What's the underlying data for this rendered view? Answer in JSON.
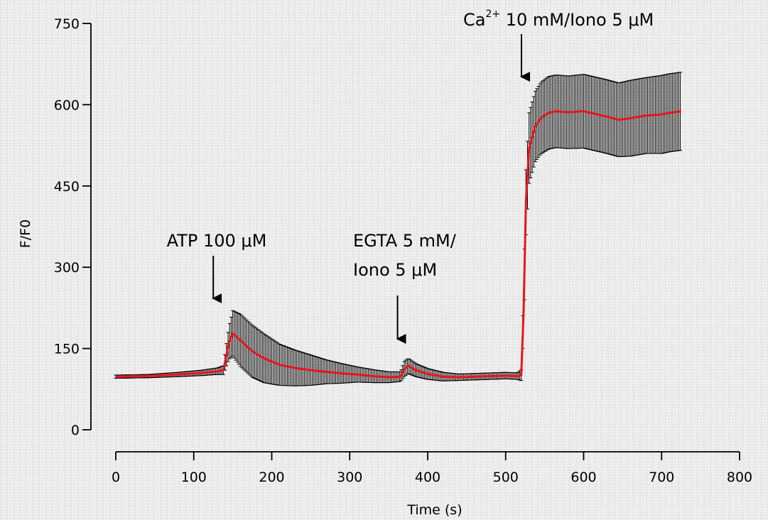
{
  "chart_data": {
    "type": "line",
    "xlabel": "Time (s)",
    "ylabel": "F/F0",
    "xlim": [
      0,
      800
    ],
    "ylim": [
      0,
      750
    ],
    "xticks": [
      "0",
      "100",
      "200",
      "300",
      "400",
      "500",
      "600",
      "700",
      "800"
    ],
    "yticks": [
      "0",
      "150",
      "300",
      "450",
      "600",
      "750"
    ],
    "grid": false,
    "series": [
      {
        "color": "#e8151b",
        "error_color": "#000000",
        "points": [
          [
            0,
            98,
            3
          ],
          [
            40,
            99,
            3
          ],
          [
            80,
            102,
            4
          ],
          [
            110,
            105,
            5
          ],
          [
            130,
            108,
            6
          ],
          [
            138,
            110,
            8
          ],
          [
            145,
            160,
            30
          ],
          [
            150,
            178,
            42
          ],
          [
            160,
            165,
            48
          ],
          [
            175,
            145,
            48
          ],
          [
            190,
            132,
            45
          ],
          [
            210,
            120,
            38
          ],
          [
            230,
            114,
            33
          ],
          [
            250,
            110,
            28
          ],
          [
            270,
            107,
            22
          ],
          [
            290,
            104,
            18
          ],
          [
            310,
            102,
            14
          ],
          [
            330,
            99,
            12
          ],
          [
            350,
            97,
            10
          ],
          [
            365,
            98,
            9
          ],
          [
            370,
            112,
            14
          ],
          [
            375,
            118,
            14
          ],
          [
            385,
            110,
            12
          ],
          [
            400,
            103,
            10
          ],
          [
            420,
            98,
            8
          ],
          [
            440,
            97,
            6
          ],
          [
            460,
            98,
            6
          ],
          [
            480,
            99,
            6
          ],
          [
            500,
            100,
            6
          ],
          [
            515,
            99,
            6
          ],
          [
            520,
            101,
            10
          ],
          [
            523,
            220,
            40
          ],
          [
            526,
            420,
            60
          ],
          [
            530,
            520,
            65
          ],
          [
            538,
            560,
            65
          ],
          [
            545,
            575,
            66
          ],
          [
            555,
            585,
            67
          ],
          [
            565,
            588,
            67
          ],
          [
            580,
            586,
            67
          ],
          [
            600,
            588,
            68
          ],
          [
            615,
            583,
            68
          ],
          [
            630,
            578,
            68
          ],
          [
            645,
            572,
            68
          ],
          [
            660,
            575,
            70
          ],
          [
            680,
            580,
            70
          ],
          [
            700,
            582,
            72
          ],
          [
            710,
            585,
            72
          ],
          [
            720,
            587,
            72
          ],
          [
            725,
            588,
            72
          ]
        ]
      }
    ],
    "annotations": [
      {
        "lines": [
          "ATP 100 μM"
        ],
        "x": 125
      },
      {
        "lines": [
          "EGTA 5 mM/",
          "Iono 5 μM"
        ],
        "x": 375
      },
      {
        "base": "Ca",
        "sup": "2+",
        "rest": " 10 mM/Iono 5 μM",
        "x": 522
      }
    ]
  }
}
